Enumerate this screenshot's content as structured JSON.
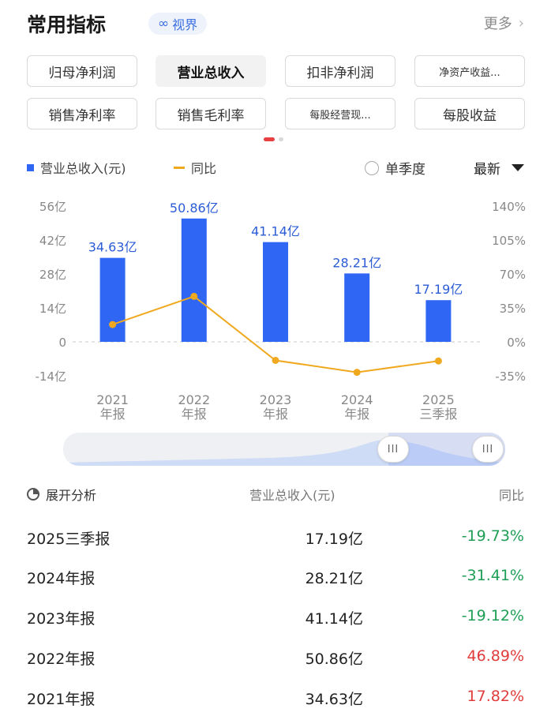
{
  "header": {
    "title": "常用指标",
    "vision_icon": "infinity-icon",
    "vision_label": "视界",
    "more_label": "更多"
  },
  "chips": [
    {
      "label": "归母净利润",
      "active": false
    },
    {
      "label": "营业总收入",
      "active": true
    },
    {
      "label": "扣非净利润",
      "active": false
    },
    {
      "label": "净资产收益...",
      "active": false
    },
    {
      "label": "销售净利率",
      "active": false
    },
    {
      "label": "销售毛利率",
      "active": false
    },
    {
      "label": "每股经营现...",
      "active": false
    },
    {
      "label": "每股收益",
      "active": false
    }
  ],
  "legend": {
    "bar_label": "营业总收入(元)",
    "line_label": "同比",
    "season_label": "单季度",
    "sort_label": "最新"
  },
  "colors": {
    "bar": "#2f66f3",
    "line": "#f0a91f",
    "negative": "#1e9e55",
    "positive": "#e03c3c"
  },
  "chart_data": {
    "type": "bar",
    "categories": [
      [
        "2021",
        "年报"
      ],
      [
        "2022",
        "年报"
      ],
      [
        "2023",
        "年报"
      ],
      [
        "2024",
        "年报"
      ],
      [
        "2025",
        "三季报"
      ]
    ],
    "series": [
      {
        "values": [
          34.63,
          50.86,
          41.14,
          28.21,
          17.19
        ],
        "labels": [
          "34.63亿",
          "50.86亿",
          "41.14亿",
          "28.21亿",
          "17.19亿"
        ]
      },
      {
        "values": [
          17.82,
          46.89,
          -19.12,
          -31.41,
          -19.73
        ]
      }
    ],
    "left_ticks": [
      "56亿",
      "42亿",
      "28亿",
      "14亿",
      "0",
      "-14亿"
    ],
    "right_ticks": [
      "140%",
      "105%",
      "70%",
      "35%",
      "0%",
      "-35%"
    ],
    "ylim_left": [
      -14,
      56
    ],
    "ylim_right": [
      -35,
      140
    ],
    "grid": "dashed zero line"
  },
  "slider": {
    "handle_glyph": "III"
  },
  "table": {
    "expand_label": "展开分析",
    "col_value": "营业总收入(元)",
    "col_yoy": "同比",
    "rows": [
      {
        "period": "2025三季报",
        "value": "17.19亿",
        "yoy": "-19.73%",
        "dir": "neg"
      },
      {
        "period": "2024年报",
        "value": "28.21亿",
        "yoy": "-31.41%",
        "dir": "neg"
      },
      {
        "period": "2023年报",
        "value": "41.14亿",
        "yoy": "-19.12%",
        "dir": "neg"
      },
      {
        "period": "2022年报",
        "value": "50.86亿",
        "yoy": "46.89%",
        "dir": "pos"
      },
      {
        "period": "2021年报",
        "value": "34.63亿",
        "yoy": "17.82%",
        "dir": "pos"
      }
    ]
  }
}
